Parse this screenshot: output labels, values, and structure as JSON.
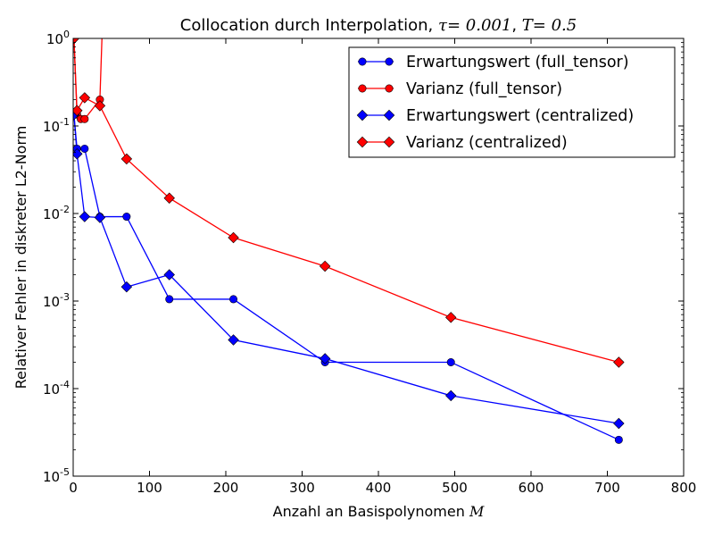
{
  "chart_data": {
    "type": "line",
    "title": "Collocation durch Interpolation, τ = 0.001, T = 0.5",
    "title_parts": {
      "prefix": "Collocation durch Interpolation, ",
      "tau_symbol": "τ",
      "tau_value": "= 0.001",
      "separator": ", ",
      "T_symbol": "T",
      "T_value": "= 0.5"
    },
    "xlabel": "Anzahl an Basispolynomen M",
    "xlabel_parts": {
      "text": "Anzahl an Basispolynomen ",
      "symbol": "M"
    },
    "ylabel": "Relativer Fehler in diskreter L2-Norm",
    "xlim": [
      0,
      800
    ],
    "ylim": [
      1e-05,
      1
    ],
    "y_scale": "log",
    "grid": false,
    "legend_position": "top-right",
    "x_ticks": [
      0,
      100,
      200,
      300,
      400,
      500,
      600,
      700,
      800
    ],
    "x_tick_labels": [
      "0",
      "100",
      "200",
      "300",
      "400",
      "500",
      "600",
      "700",
      "800"
    ],
    "y_ticks": [
      1e-05,
      0.0001,
      0.001,
      0.01,
      0.1,
      1
    ],
    "y_tick_labels": [
      {
        "base": "10",
        "exp": "-5"
      },
      {
        "base": "10",
        "exp": "-4"
      },
      {
        "base": "10",
        "exp": "-3"
      },
      {
        "base": "10",
        "exp": "-2"
      },
      {
        "base": "10",
        "exp": "-1"
      },
      {
        "base": "10",
        "exp": "0"
      }
    ],
    "series": [
      {
        "name": "Erwartungswert (full_tensor)",
        "color": "#0000ff",
        "marker": "circle",
        "x": [
          1,
          5,
          15,
          35,
          70,
          126,
          210,
          330,
          495,
          715
        ],
        "y": [
          0.135,
          0.055,
          0.055,
          0.0092,
          0.0092,
          0.00105,
          0.00105,
          0.0002,
          0.0002,
          2.6e-05
        ]
      },
      {
        "name": "Varianz (full_tensor)",
        "color": "#ff0000",
        "marker": "circle",
        "x": [
          1,
          5,
          10,
          15,
          35,
          38
        ],
        "y": [
          1.0,
          0.135,
          0.12,
          0.12,
          0.2,
          1.2
        ]
      },
      {
        "name": "Erwartungswert (centralized)",
        "color": "#0000ff",
        "marker": "diamond",
        "x": [
          1,
          5,
          15,
          35,
          70,
          126,
          210,
          330,
          495,
          715
        ],
        "y": [
          0.135,
          0.048,
          0.0092,
          0.009,
          0.00145,
          0.002,
          0.00036,
          0.00022,
          8.3e-05,
          4e-05
        ]
      },
      {
        "name": "Varianz (centralized)",
        "color": "#ff0000",
        "marker": "diamond",
        "x": [
          1,
          5,
          15,
          35,
          70,
          126,
          210,
          330,
          495,
          715
        ],
        "y": [
          1.0,
          0.15,
          0.21,
          0.17,
          0.042,
          0.015,
          0.0053,
          0.0025,
          0.00065,
          0.0002
        ]
      }
    ]
  }
}
